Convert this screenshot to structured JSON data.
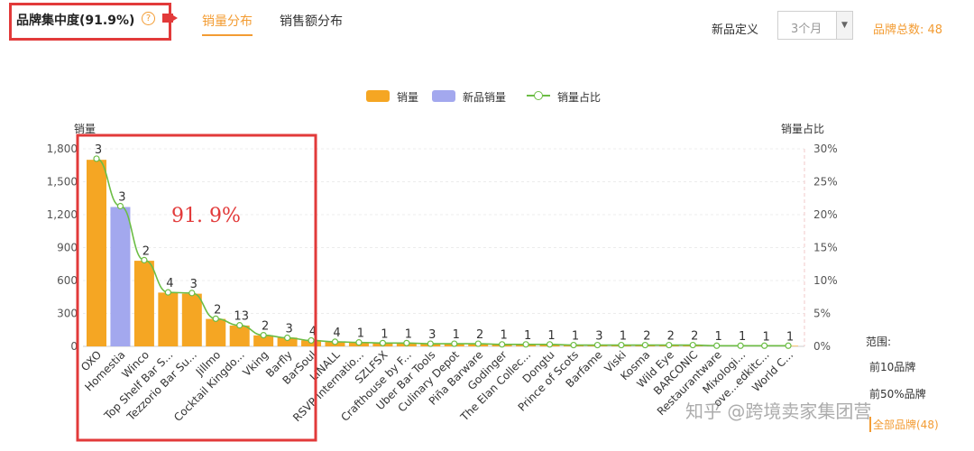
{
  "header": {
    "title": "品牌集中度(91.9%)",
    "help_icon": "?",
    "tabs": [
      {
        "label": "销量分布",
        "active": true
      },
      {
        "label": "销售额分布",
        "active": false
      }
    ],
    "new_product_label": "新品定义",
    "new_product_select": "3个月",
    "brand_total": "品牌总数: 48"
  },
  "colors": {
    "sales": "#f5a623",
    "new_sales": "#a3a8ee",
    "share_line": "#6cbd45",
    "accent": "#f39c33",
    "annotation": "#e23a3a"
  },
  "legend": [
    {
      "label": "销量",
      "kind": "bar",
      "color": "#f5a623"
    },
    {
      "label": "新品销量",
      "kind": "bar",
      "color": "#a3a8ee"
    },
    {
      "label": "销量占比",
      "kind": "line",
      "color": "#6cbd45"
    }
  ],
  "annotation_text": "91. 9%",
  "range_panel": {
    "title": "范围:",
    "options": [
      {
        "label": "前10品牌",
        "active": false
      },
      {
        "label": "前50%品牌",
        "active": false
      },
      {
        "label": "全部品牌(48)",
        "active": true
      }
    ]
  },
  "watermark": "知乎 @跨境卖家集团营",
  "chart_data": {
    "type": "bar",
    "ylabel": "销量",
    "y2label": "销量占比",
    "ylim": [
      0,
      1800
    ],
    "y2lim": [
      0,
      30
    ],
    "yticks": [
      "0",
      "300",
      "600",
      "900",
      "1,200",
      "1,500",
      "1,800"
    ],
    "y2ticks": [
      "0%",
      "5%",
      "10%",
      "15%",
      "20%",
      "25%",
      "30%"
    ],
    "categories": [
      "OXO",
      "Homestia",
      "Winco",
      "Top Shelf Bar S...",
      "Tezzorio Bar Su...",
      "Jillmo",
      "Cocktail Kingdo...",
      "Vking",
      "Barfly",
      "BarSoul",
      "LINALL",
      "RSVP Internatio...",
      "SZLFSX",
      "Crafthouse by F...",
      "Uber Bar Tools",
      "Culinary Depot",
      "Piña Barware",
      "Godinger",
      "The Elan Collec...",
      "Dongtu",
      "Prince of Scots",
      "Barfame",
      "Viski",
      "Kosma",
      "Wild Eye",
      "BARCONIC",
      "Restaurantware",
      "Mixologi...",
      "ove...edkitc...",
      "World C..."
    ],
    "series": [
      {
        "name": "销量",
        "values": [
          1700,
          10,
          780,
          490,
          480,
          250,
          190,
          100,
          80,
          55,
          40,
          35,
          30,
          28,
          26,
          24,
          22,
          20,
          18,
          16,
          14,
          13,
          12,
          11,
          10,
          9,
          8,
          7,
          6,
          5
        ]
      },
      {
        "name": "新品销量",
        "values": [
          0,
          1270,
          0,
          0,
          0,
          0,
          0,
          0,
          0,
          0,
          0,
          0,
          0,
          0,
          0,
          0,
          0,
          0,
          0,
          0,
          0,
          0,
          0,
          0,
          0,
          0,
          0,
          0,
          0,
          0
        ]
      },
      {
        "name": "销量占比",
        "values": [
          28.5,
          21.3,
          13.1,
          8.2,
          8.1,
          4.2,
          3.2,
          1.7,
          1.3,
          0.9,
          0.7,
          0.6,
          0.5,
          0.5,
          0.4,
          0.4,
          0.4,
          0.3,
          0.3,
          0.3,
          0.2,
          0.2,
          0.2,
          0.2,
          0.2,
          0.2,
          0.1,
          0.1,
          0.1,
          0.1
        ]
      }
    ],
    "point_labels": [
      "3",
      "3",
      "2",
      "4",
      "3",
      "2",
      "13",
      "2",
      "3",
      "4",
      "4",
      "1",
      "1",
      "1",
      "3",
      "1",
      "2",
      "1",
      "1",
      "1",
      "1",
      "3",
      "1",
      "2",
      "2",
      "2",
      "1",
      "1",
      "1",
      "1"
    ],
    "grid": false,
    "legend_position": "top-center"
  }
}
